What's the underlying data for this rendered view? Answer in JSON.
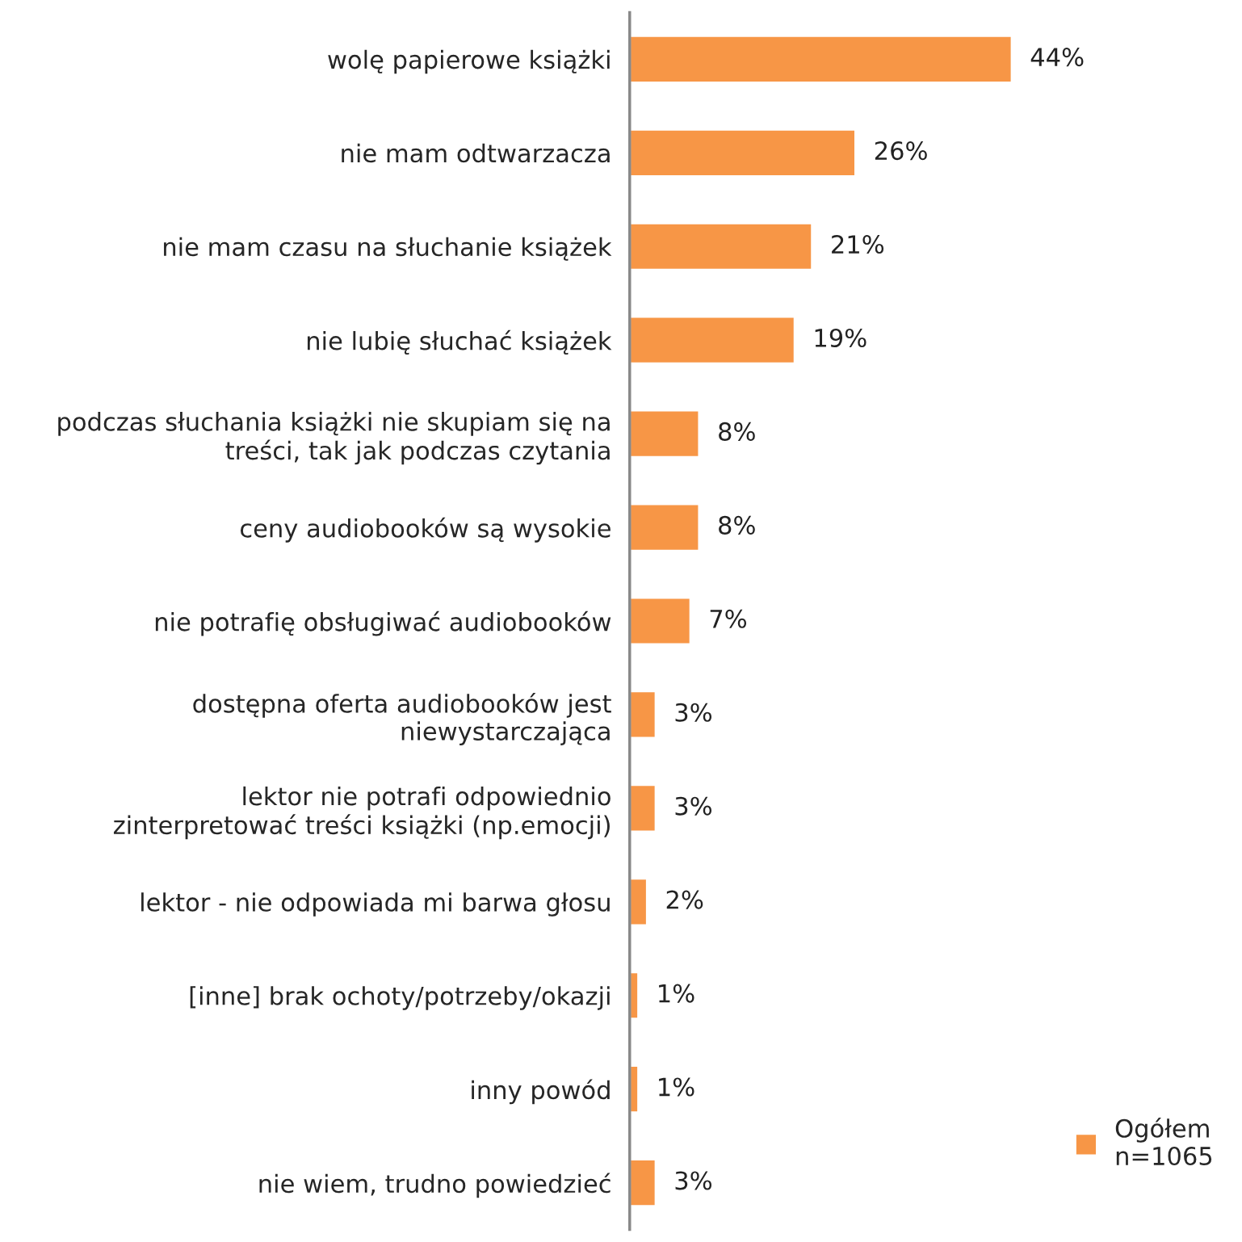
{
  "chart_data": {
    "type": "bar",
    "orientation": "horizontal",
    "categories": [
      "wolę papierowe książki",
      "nie mam odtwarzacza",
      "nie mam czasu na słuchanie książek",
      "nie lubię słuchać książek",
      "podczas słuchania książki nie skupiam się na\ntreści, tak jak podczas czytania",
      "ceny audiobooków są wysokie",
      "nie potrafię obsługiwać audiobooków",
      "dostępna oferta audiobooków jest\nniewystarczająca",
      "lektor nie potrafi odpowiednio\nzinterpretować treści książki (np.emocji)",
      "lektor - nie odpowiada mi barwa głosu",
      "[inne] brak ochoty/potrzeby/okazji",
      "inny powód",
      "nie wiem, trudno powiedzieć"
    ],
    "series": [
      {
        "name": "Ogółem\nn=1065",
        "color": "#f79646",
        "values": [
          44,
          26,
          21,
          19,
          8,
          8,
          7,
          3,
          3,
          2,
          1,
          1,
          3
        ],
        "value_labels": [
          "44%",
          "26%",
          "21%",
          "19%",
          "8%",
          "8%",
          "7%",
          "3%",
          "3%",
          "2%",
          "1%",
          "1%",
          "3%"
        ]
      }
    ],
    "legend": "bottom right"
  }
}
